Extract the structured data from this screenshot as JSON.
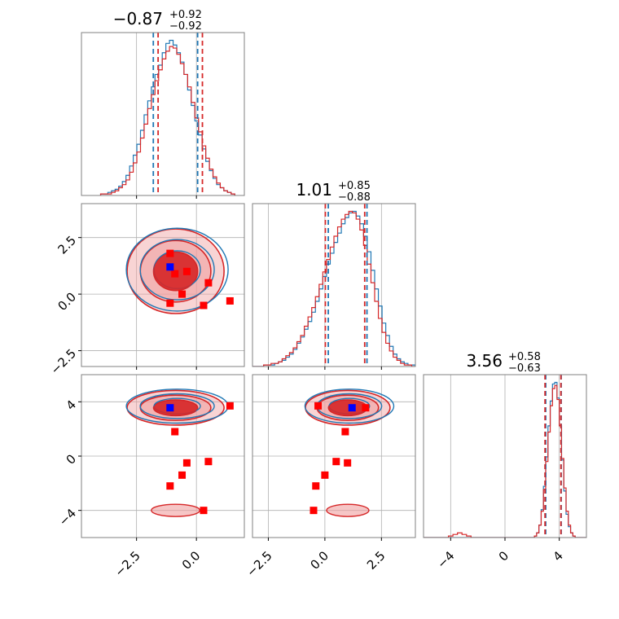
{
  "chart_data": {
    "type": "corner",
    "params": [
      {
        "median": -0.87,
        "plus": "+0.92",
        "minus": "-0.92",
        "title": "−0.87",
        "range": [
          -4.8,
          2.0
        ],
        "ticks": [
          -2.5,
          0.0
        ],
        "tick_labels": [
          "−2.5",
          "0.0"
        ]
      },
      {
        "median": 1.01,
        "plus": "+0.85",
        "minus": "−0.88",
        "title": "1.01",
        "range": [
          -3.2,
          4.0
        ],
        "ticks": [
          -2.5,
          0.0,
          2.5
        ],
        "tick_labels": [
          "−2.5",
          "0.0",
          "2.5"
        ]
      },
      {
        "median": 3.56,
        "plus": "+0.58",
        "minus": "−0.63",
        "title": "3.56",
        "range": [
          -6.0,
          6.0
        ],
        "ticks": [
          -4,
          0,
          4
        ],
        "tick_labels": [
          "−4",
          "0",
          "4"
        ]
      }
    ],
    "titles": [
      {
        "main": "−0.87",
        "sup": "+0.92",
        "sub": "−0.92"
      },
      {
        "main": "1.01",
        "sup": "+0.85",
        "sub": "−0.88"
      },
      {
        "main": "3.56",
        "sup": "+0.58",
        "sub": "−0.63"
      }
    ],
    "series": [
      {
        "color": "#1f77b4",
        "quantiles": [
          [
            -1.8,
            0.05
          ],
          [
            0.15,
            1.86
          ],
          [
            3.0,
            4.14
          ]
        ]
      },
      {
        "color": "#d62728",
        "quantiles": [
          [
            -1.6,
            0.25
          ],
          [
            0.02,
            1.76
          ],
          [
            2.95,
            4.12
          ]
        ]
      }
    ],
    "histograms": [
      {
        "bins": [
          -4.0,
          1.6
        ],
        "blue": [
          1,
          1,
          2,
          3,
          4,
          6,
          9,
          13,
          19,
          26,
          33,
          42,
          52,
          61,
          70,
          78,
          84,
          92,
          98,
          100,
          97,
          92,
          86,
          78,
          68,
          58,
          48,
          39,
          30,
          22,
          16,
          11,
          7,
          5,
          3,
          2,
          1
        ],
        "red": [
          1,
          1,
          1,
          2,
          3,
          5,
          7,
          10,
          15,
          21,
          28,
          37,
          46,
          56,
          65,
          74,
          81,
          88,
          93,
          96,
          95,
          91,
          85,
          78,
          70,
          60,
          50,
          41,
          32,
          24,
          17,
          12,
          8,
          5,
          3,
          2,
          1
        ]
      },
      {
        "bins": [
          -3.2,
          4.0
        ],
        "blue": [
          0,
          0,
          0,
          1,
          1,
          1,
          2,
          3,
          4,
          6,
          8,
          11,
          15,
          19,
          24,
          29,
          35,
          42,
          50,
          58,
          66,
          73,
          80,
          86,
          92,
          96,
          99,
          100,
          97,
          92,
          84,
          74,
          62,
          50,
          39,
          28,
          20,
          13,
          8,
          5,
          3,
          2,
          1,
          1
        ],
        "red": [
          0,
          0,
          0,
          1,
          1,
          2,
          2,
          3,
          5,
          7,
          9,
          12,
          16,
          20,
          26,
          32,
          38,
          45,
          53,
          61,
          69,
          77,
          84,
          90,
          95,
          98,
          100,
          99,
          95,
          88,
          78,
          66,
          54,
          42,
          31,
          22,
          15,
          10,
          6,
          4,
          2,
          1,
          1,
          0
        ]
      },
      {
        "bins": [
          -6.0,
          6.0
        ],
        "blue": [
          0,
          0,
          0,
          0,
          0,
          0,
          0,
          0,
          0,
          0,
          0,
          0,
          0,
          0,
          0,
          0,
          0,
          0,
          0,
          0,
          0,
          0,
          0,
          0,
          0,
          0,
          0,
          0,
          0,
          0,
          0,
          0,
          0,
          0,
          0,
          0,
          0,
          0,
          0,
          0,
          0,
          0,
          0,
          0,
          0,
          0,
          0,
          0,
          0,
          1,
          3,
          8,
          18,
          33,
          52,
          72,
          88,
          99,
          100,
          90,
          72,
          50,
          30,
          15,
          7,
          3,
          1,
          0,
          0,
          0,
          0,
          0
        ],
        "red": [
          0,
          0,
          0,
          0,
          0,
          0,
          0,
          0,
          0,
          0,
          0,
          1,
          1,
          2,
          2,
          3,
          3,
          2,
          2,
          1,
          1,
          0,
          0,
          0,
          0,
          0,
          0,
          0,
          0,
          0,
          0,
          0,
          0,
          0,
          0,
          0,
          0,
          0,
          0,
          0,
          0,
          0,
          0,
          0,
          0,
          0,
          0,
          0,
          0,
          1,
          3,
          8,
          17,
          31,
          49,
          68,
          85,
          96,
          98,
          89,
          72,
          51,
          32,
          17,
          8,
          3,
          1,
          0,
          0,
          0,
          0,
          0
        ]
      }
    ],
    "markers": {
      "blue": [
        [
          -1.1,
          1.2,
          3.56
        ]
      ],
      "red": [
        [
          -1.1,
          1.8,
          3.56
        ],
        [
          -0.9,
          0.9,
          1.8
        ],
        [
          -0.4,
          1.0,
          -0.5
        ],
        [
          -0.6,
          0.0,
          -1.4
        ],
        [
          0.3,
          -0.5,
          -4.0
        ],
        [
          1.4,
          -0.3,
          3.7
        ],
        [
          -1.1,
          -0.4,
          -2.2
        ],
        [
          0.5,
          0.5,
          -0.4
        ]
      ]
    },
    "grid": true,
    "colors": {
      "blue": "#1f77b4",
      "red": "#d62728",
      "red_fill": "#f0a0a0"
    }
  }
}
